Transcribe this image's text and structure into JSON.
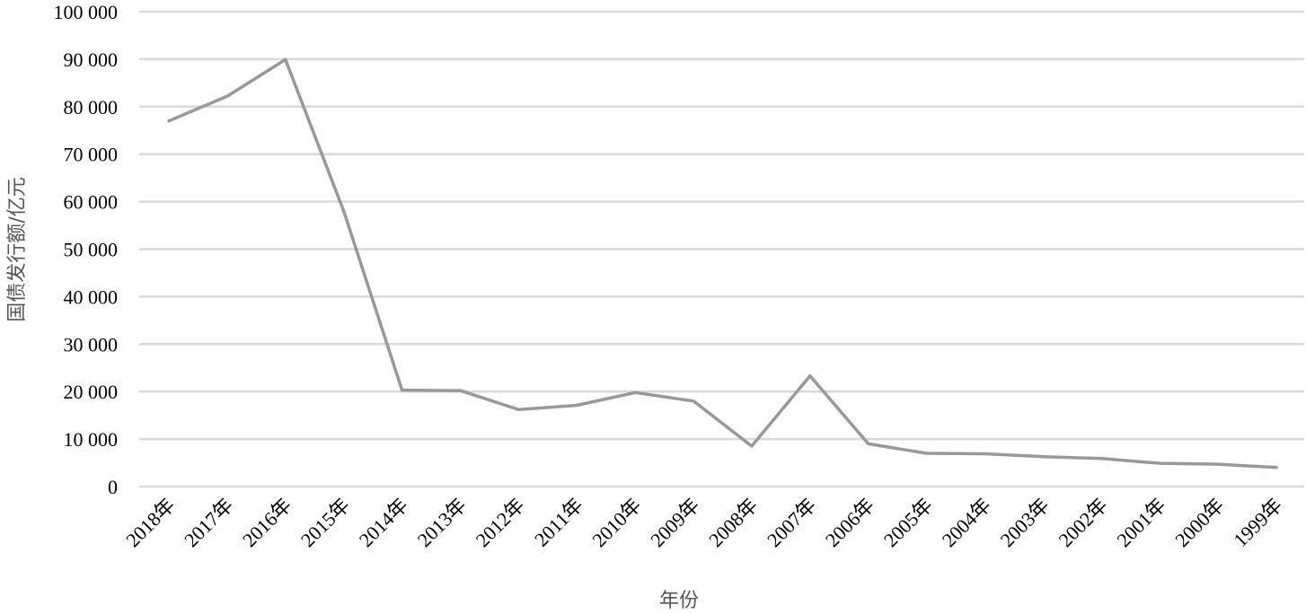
{
  "chart_data": {
    "type": "line",
    "title": "",
    "xlabel": "年份",
    "ylabel": "国债发行额/亿元",
    "ylim": [
      0,
      100000
    ],
    "yticks": [
      0,
      10000,
      20000,
      30000,
      40000,
      50000,
      60000,
      70000,
      80000,
      90000,
      100000
    ],
    "ytick_labels": [
      "0",
      "10 000",
      "20 000",
      "30 000",
      "40 000",
      "50 000",
      "60 000",
      "70 000",
      "80 000",
      "90 000",
      "100 000"
    ],
    "grid": true,
    "legend": "none",
    "categories": [
      "2018年",
      "2017年",
      "2016年",
      "2015年",
      "2014年",
      "2013年",
      "2012年",
      "2011年",
      "2010年",
      "2009年",
      "2008年",
      "2007年",
      "2006年",
      "2005年",
      "2004年",
      "2003年",
      "2002年",
      "2001年",
      "2000年",
      "1999年"
    ],
    "series": [
      {
        "values": [
          77000,
          82200,
          89900,
          58000,
          20300,
          20200,
          16200,
          17100,
          19800,
          18000,
          8500,
          23300,
          9000,
          7000,
          6900,
          6300,
          5900,
          4900,
          4700,
          4000
        ],
        "color": "#999999"
      }
    ]
  }
}
